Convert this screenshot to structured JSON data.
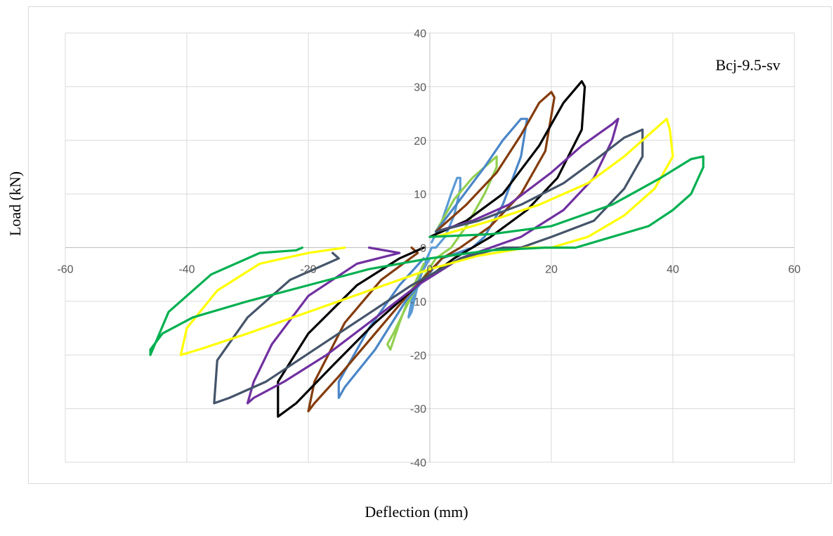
{
  "chart_data": {
    "type": "line",
    "title": "",
    "annotation": "Bcj-9.5-sv",
    "xlabel": "Deflection (mm)",
    "ylabel": "Load (kN)",
    "xlim": [
      -60,
      60
    ],
    "ylim": [
      -40,
      40
    ],
    "x_ticks": [
      -60,
      -40,
      -20,
      0,
      20,
      40,
      60
    ],
    "y_ticks": [
      -40,
      -30,
      -20,
      -10,
      0,
      10,
      20,
      30,
      40
    ],
    "grid": true,
    "legend": "none",
    "series": [
      {
        "color": "#5b9bd5",
        "points": [
          [
            0.3,
            1
          ],
          [
            2,
            5
          ],
          [
            3.5,
            10
          ],
          [
            4.5,
            13
          ],
          [
            5,
            13
          ],
          [
            5,
            11
          ],
          [
            4,
            6
          ],
          [
            2.5,
            2
          ],
          [
            1,
            0
          ],
          [
            0.3,
            0
          ],
          [
            -0.5,
            -2
          ],
          [
            -2,
            -7
          ],
          [
            -3,
            -12
          ],
          [
            -3.5,
            -13
          ],
          [
            -3,
            -10
          ],
          [
            -1.5,
            -5
          ],
          [
            0,
            -2
          ]
        ]
      },
      {
        "color": "#92d050",
        "points": [
          [
            1,
            3
          ],
          [
            4,
            9
          ],
          [
            7,
            13
          ],
          [
            9,
            15
          ],
          [
            11,
            17
          ],
          [
            11,
            15
          ],
          [
            9,
            10
          ],
          [
            6,
            4
          ],
          [
            3.5,
            0
          ],
          [
            1,
            -2
          ],
          [
            -3,
            -9
          ],
          [
            -6,
            -16
          ],
          [
            -7,
            -18
          ],
          [
            -6.5,
            -19
          ],
          [
            -5,
            -14
          ],
          [
            -3,
            -8
          ],
          [
            -1,
            -3
          ]
        ]
      },
      {
        "color": "#4a86c8",
        "points": [
          [
            1,
            3
          ],
          [
            5,
            9
          ],
          [
            9,
            15
          ],
          [
            12,
            20
          ],
          [
            15,
            24
          ],
          [
            16,
            24
          ],
          [
            15,
            17
          ],
          [
            12,
            8
          ],
          [
            9,
            2
          ],
          [
            7,
            0
          ],
          [
            2,
            -2
          ],
          [
            -4,
            -10
          ],
          [
            -9,
            -19
          ],
          [
            -14,
            -26
          ],
          [
            -15,
            -28
          ],
          [
            -15,
            -25
          ],
          [
            -10,
            -15
          ],
          [
            -5,
            -7
          ],
          [
            -1,
            -2
          ]
        ]
      },
      {
        "color": "#843c0c",
        "points": [
          [
            1,
            3
          ],
          [
            6,
            8
          ],
          [
            11,
            14
          ],
          [
            15,
            21
          ],
          [
            18,
            27
          ],
          [
            20,
            29
          ],
          [
            20.5,
            28
          ],
          [
            19,
            18
          ],
          [
            15,
            10
          ],
          [
            10,
            4
          ],
          [
            5,
            0
          ],
          [
            2,
            -2
          ],
          [
            -3,
            -8
          ],
          [
            -9,
            -16
          ],
          [
            -15,
            -24
          ],
          [
            -19,
            -29
          ],
          [
            -20,
            -30.5
          ],
          [
            -19,
            -25
          ],
          [
            -14,
            -14
          ],
          [
            -8,
            -6
          ],
          [
            -2,
            -1
          ],
          [
            -3,
            0
          ]
        ]
      },
      {
        "color": "#000000",
        "points": [
          [
            0,
            2
          ],
          [
            6,
            5
          ],
          [
            12,
            10
          ],
          [
            18,
            19
          ],
          [
            22,
            27
          ],
          [
            25,
            31
          ],
          [
            25.5,
            30
          ],
          [
            25,
            22
          ],
          [
            21,
            13
          ],
          [
            16,
            7
          ],
          [
            10,
            2
          ],
          [
            7,
            0
          ],
          [
            4,
            -2
          ],
          [
            -2,
            -7
          ],
          [
            -9,
            -14
          ],
          [
            -16,
            -22
          ],
          [
            -22,
            -29
          ],
          [
            -25,
            -31.5
          ],
          [
            -25,
            -25
          ],
          [
            -20,
            -16
          ],
          [
            -12,
            -7
          ],
          [
            -5,
            -2
          ],
          [
            -1,
            0
          ]
        ]
      },
      {
        "color": "#7030a0",
        "points": [
          [
            1,
            3
          ],
          [
            7,
            5
          ],
          [
            13,
            8
          ],
          [
            20,
            14
          ],
          [
            25,
            19
          ],
          [
            30,
            23
          ],
          [
            31,
            24
          ],
          [
            30,
            20
          ],
          [
            27,
            13
          ],
          [
            22,
            7
          ],
          [
            15,
            2
          ],
          [
            10,
            0
          ],
          [
            5,
            -2
          ],
          [
            -2,
            -7
          ],
          [
            -10,
            -14
          ],
          [
            -17,
            -20
          ],
          [
            -24,
            -25
          ],
          [
            -29,
            -28
          ],
          [
            -30,
            -29
          ],
          [
            -29,
            -25
          ],
          [
            -26,
            -18
          ],
          [
            -20,
            -9
          ],
          [
            -12,
            -3
          ],
          [
            -5,
            -1
          ],
          [
            -10,
            0
          ]
        ]
      },
      {
        "color": "#44546a",
        "points": [
          [
            1,
            3
          ],
          [
            8,
            5
          ],
          [
            15,
            8
          ],
          [
            22,
            12
          ],
          [
            28,
            17
          ],
          [
            32,
            20.5
          ],
          [
            35,
            22
          ],
          [
            35,
            17
          ],
          [
            32,
            11
          ],
          [
            27,
            5
          ],
          [
            20,
            2
          ],
          [
            15,
            0
          ],
          [
            12,
            0
          ],
          [
            5,
            -2
          ],
          [
            -3,
            -7
          ],
          [
            -11,
            -13
          ],
          [
            -19,
            -19
          ],
          [
            -27,
            -25
          ],
          [
            -33,
            -28
          ],
          [
            -35.5,
            -29
          ],
          [
            -35,
            -21
          ],
          [
            -30,
            -13
          ],
          [
            -23,
            -6
          ],
          [
            -15,
            -2
          ],
          [
            -16,
            -1
          ]
        ]
      },
      {
        "color": "#ffff00",
        "points": [
          [
            1,
            2
          ],
          [
            10,
            5
          ],
          [
            18,
            8
          ],
          [
            26,
            12
          ],
          [
            32,
            17
          ],
          [
            36,
            21
          ],
          [
            39,
            24
          ],
          [
            39.5,
            22
          ],
          [
            40,
            17
          ],
          [
            37,
            11
          ],
          [
            32,
            6
          ],
          [
            26,
            2
          ],
          [
            20,
            0
          ],
          [
            16,
            0
          ],
          [
            8,
            -1.5
          ],
          [
            0,
            -4
          ],
          [
            -10,
            -8
          ],
          [
            -20,
            -12
          ],
          [
            -30,
            -16
          ],
          [
            -38,
            -19
          ],
          [
            -41,
            -20
          ],
          [
            -40,
            -15
          ],
          [
            -35,
            -8
          ],
          [
            -28,
            -3
          ],
          [
            -20,
            -1
          ],
          [
            -14,
            0
          ]
        ]
      },
      {
        "color": "#00b050",
        "points": [
          [
            0,
            2
          ],
          [
            10,
            2.5
          ],
          [
            20,
            4
          ],
          [
            30,
            8
          ],
          [
            38,
            13
          ],
          [
            43,
            16.5
          ],
          [
            45,
            17
          ],
          [
            45,
            15
          ],
          [
            43,
            10
          ],
          [
            40,
            7
          ],
          [
            36,
            4
          ],
          [
            30,
            2
          ],
          [
            24,
            0
          ],
          [
            19,
            0
          ],
          [
            10,
            -0.5
          ],
          [
            0,
            -2
          ],
          [
            -10,
            -4
          ],
          [
            -20,
            -7
          ],
          [
            -30,
            -10
          ],
          [
            -39,
            -13
          ],
          [
            -44,
            -16
          ],
          [
            -46,
            -19
          ],
          [
            -46,
            -20
          ],
          [
            -43,
            -12
          ],
          [
            -36,
            -5
          ],
          [
            -28,
            -1
          ],
          [
            -22,
            -0.5
          ],
          [
            -21,
            0
          ]
        ]
      }
    ]
  }
}
